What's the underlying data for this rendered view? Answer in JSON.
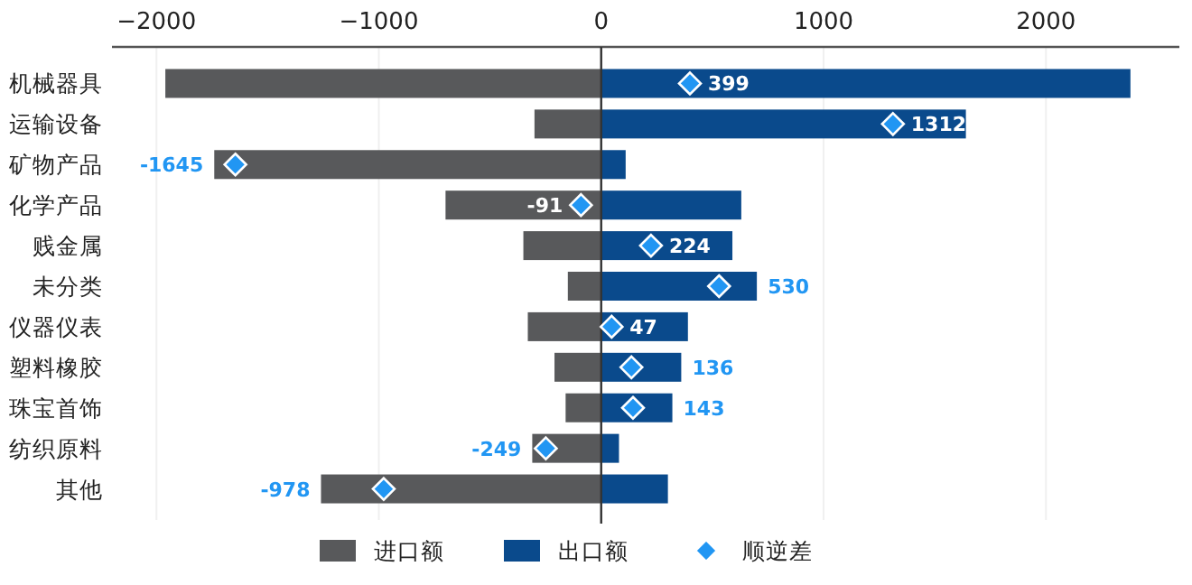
{
  "chart_data": {
    "type": "bar",
    "orientation": "horizontal",
    "stacked": true,
    "grid": "x",
    "legend": "bottom",
    "categories": [
      "机械器具",
      "运输设备",
      "矿物产品",
      "化学产品",
      "贱金属",
      "未分类",
      "仪器仪表",
      "塑料橡胶",
      "珠宝首饰",
      "纺织原料",
      "其他"
    ],
    "xlim": [
      -2200,
      2600
    ],
    "xticks": [
      {
        "value": -2000,
        "label": "−2000"
      },
      {
        "value": -1000,
        "label": "−1000"
      },
      0,
      1000,
      2000
    ],
    "series": [
      {
        "name": "进口额",
        "color": "#58595b",
        "values": [
          -1960,
          -300,
          -1740,
          -700,
          -350,
          -150,
          -330,
          -210,
          -160,
          -310,
          -1260
        ]
      },
      {
        "name": "出口额",
        "color": "#0a4a8c",
        "values": [
          2380,
          1640,
          110,
          630,
          590,
          700,
          390,
          360,
          320,
          80,
          300
        ]
      },
      {
        "name": "顺逆差",
        "type": "scatter",
        "marker": "diamond",
        "color": "#2196f3",
        "values": [
          399,
          1312,
          -1645,
          -91,
          224,
          530,
          47,
          136,
          143,
          -249,
          -978
        ],
        "value_labels": [
          "399",
          "1312",
          "-1645",
          "-91",
          "224",
          "530",
          "47",
          "136",
          "143",
          "-249",
          "-978"
        ]
      }
    ]
  }
}
